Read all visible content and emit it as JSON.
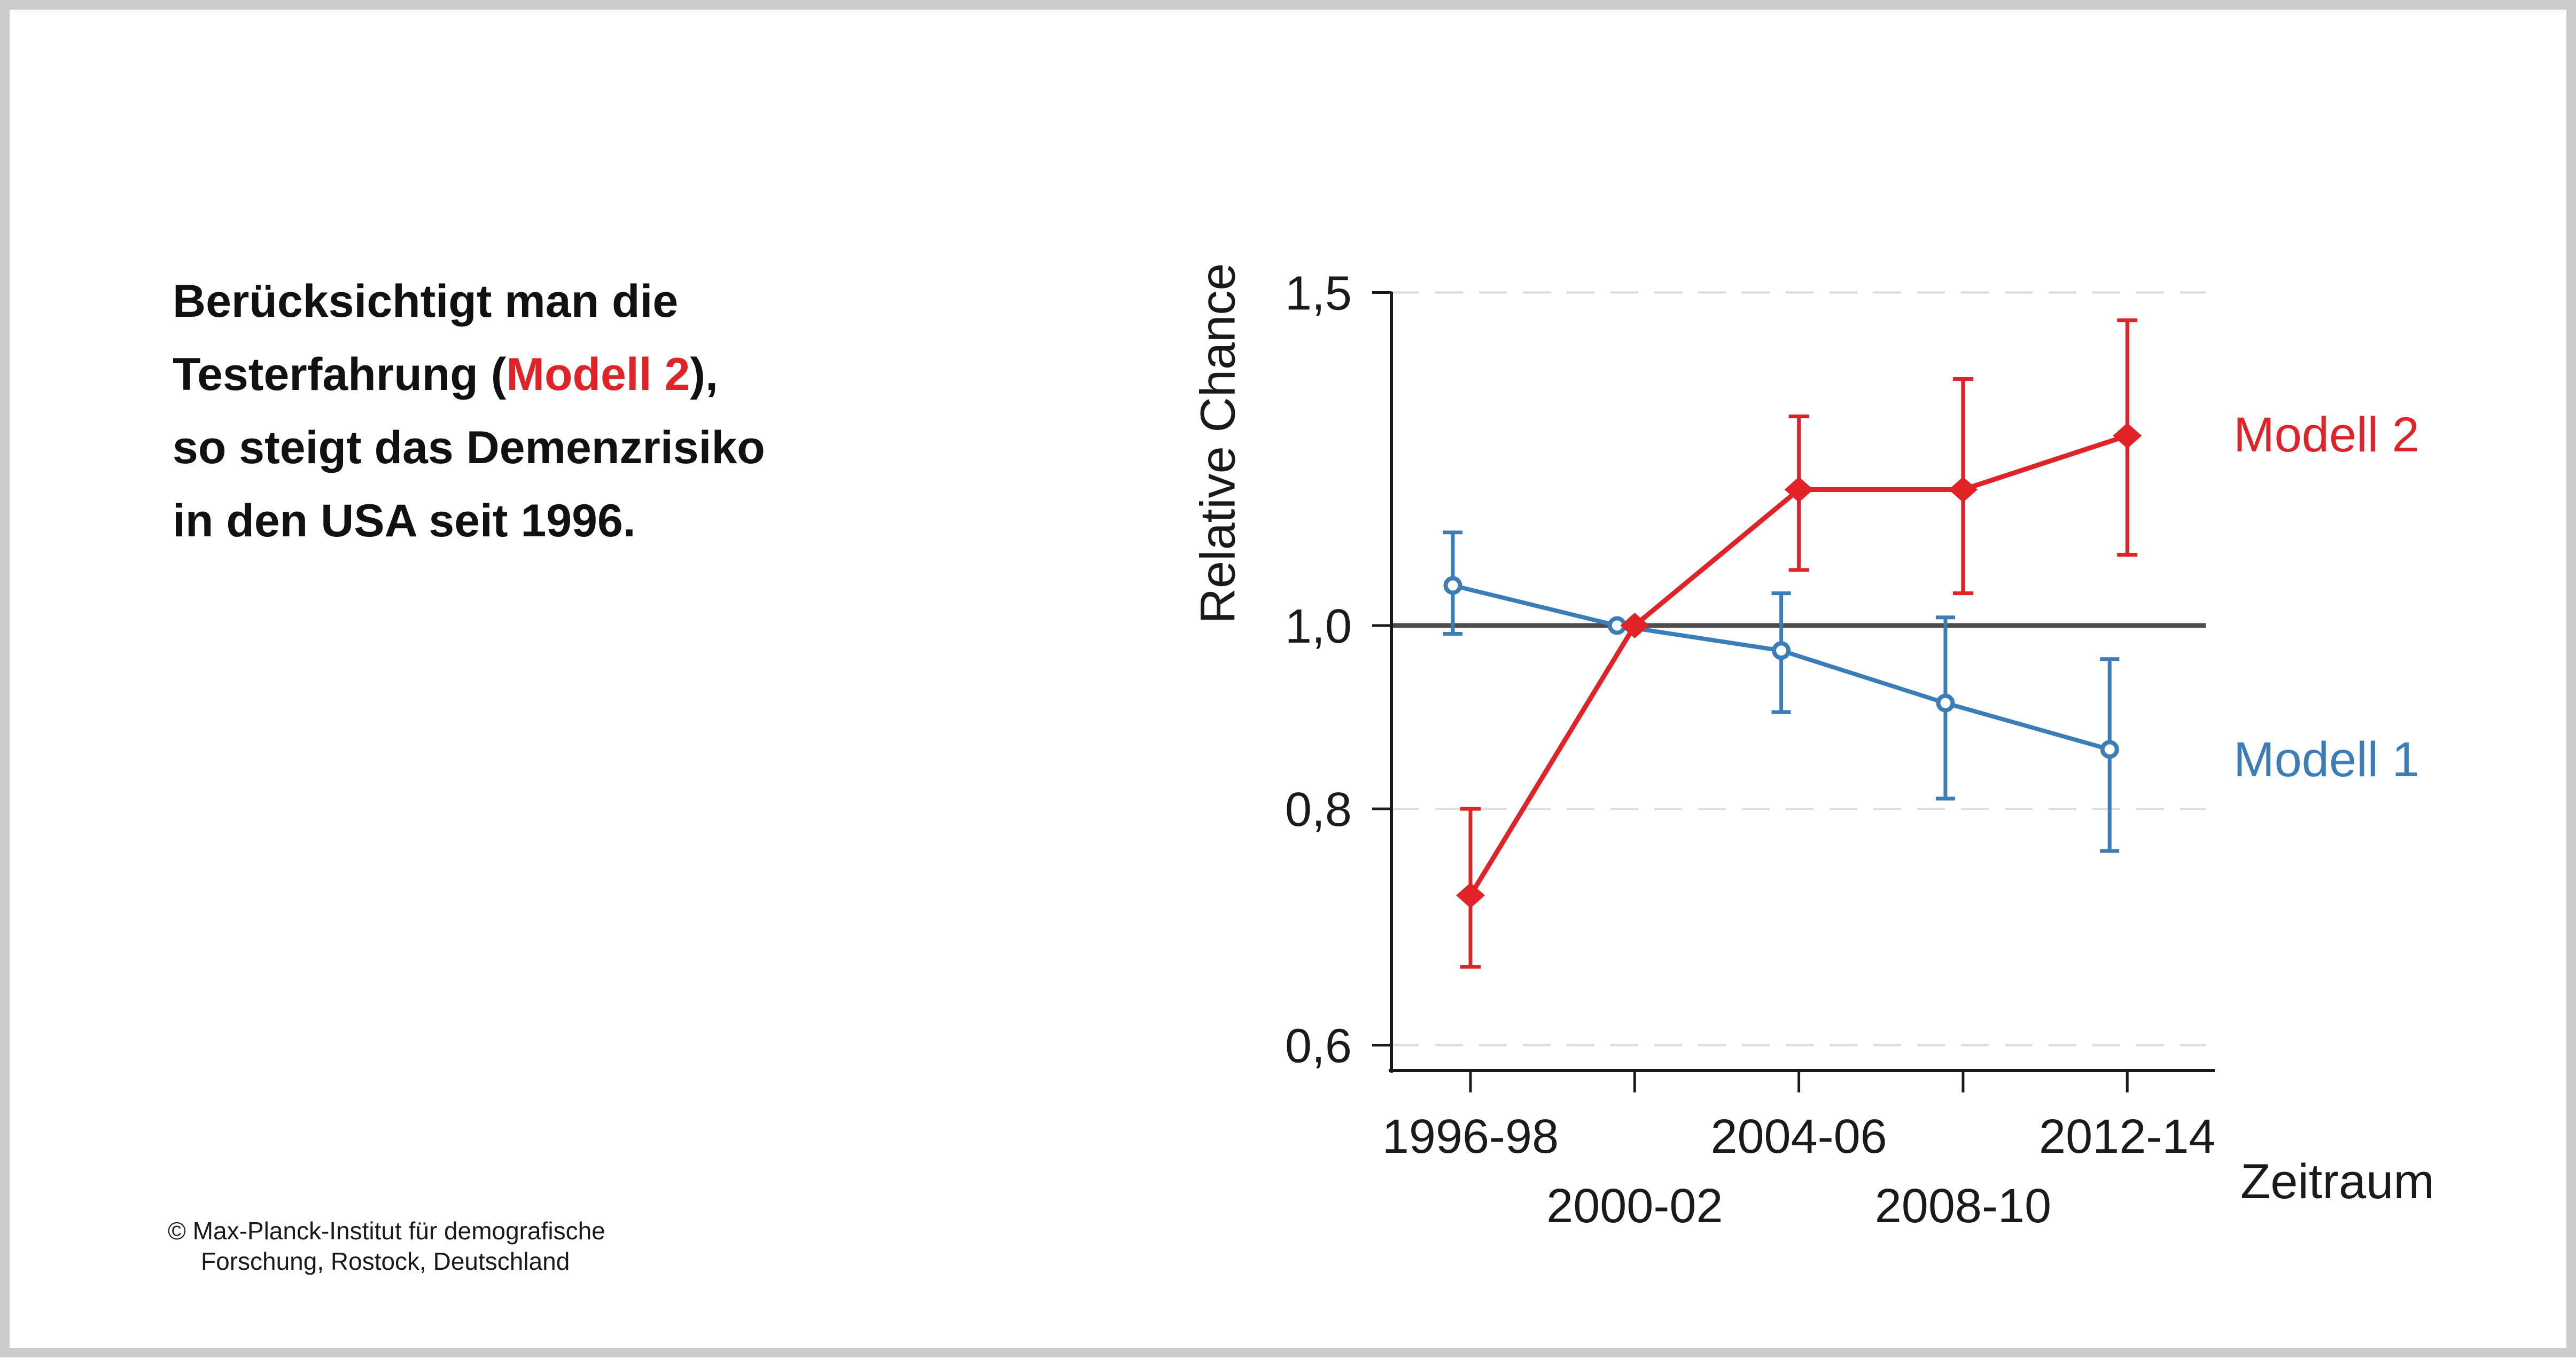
{
  "frame": {
    "border_color": "#cccccc",
    "background_color": "#ffffff"
  },
  "headline": {
    "line1": "Berücksichtigt man die",
    "line2_prefix": "Testerfahrung (",
    "line2_highlight": "Modell 2",
    "line2_suffix": "),",
    "line3": "so steigt das Demenzrisiko",
    "line4": "in den USA seit 1996.",
    "highlight_color": "#e12328"
  },
  "credit": {
    "line1": "© Max-Planck-Institut für demografische",
    "line2": "Forschung, Rostock, Deutschland"
  },
  "chart_data": {
    "type": "line",
    "title": "",
    "xlabel": "Zeitraum",
    "ylabel": "Relative Chance",
    "y_scale": "log",
    "ylim": [
      0.58,
      1.52
    ],
    "categories": [
      "1996-98",
      "2000-02",
      "2004-06",
      "2008-10",
      "2012-14"
    ],
    "y_ticks": [
      {
        "value": 1.5,
        "label": "1,5"
      },
      {
        "value": 1.0,
        "label": "1,0"
      },
      {
        "value": 0.8,
        "label": "0,8"
      },
      {
        "value": 0.6,
        "label": "0,6"
      }
    ],
    "reference_line": 1.0,
    "dashed_gridlines": [
      1.5,
      0.8,
      0.6
    ],
    "grid_color": "#dcdcdc",
    "refline_color": "#4d4d4d",
    "axis_color": "#1a1a1a",
    "legend_position": "right",
    "series": [
      {
        "name": "Modell 1",
        "color": "#3b7db8",
        "marker": "open-circle",
        "values": [
          1.05,
          1.0,
          0.97,
          0.91,
          0.86
        ],
        "ci_low": [
          0.99,
          null,
          0.9,
          0.81,
          0.76
        ],
        "ci_high": [
          1.12,
          null,
          1.04,
          1.01,
          0.96
        ]
      },
      {
        "name": "Modell 2",
        "color": "#e12328",
        "marker": "filled-diamond",
        "values": [
          0.72,
          1.0,
          1.18,
          1.18,
          1.26
        ],
        "ci_low": [
          0.66,
          null,
          1.07,
          1.04,
          1.09
        ],
        "ci_high": [
          0.8,
          null,
          1.29,
          1.35,
          1.45
        ]
      }
    ]
  }
}
